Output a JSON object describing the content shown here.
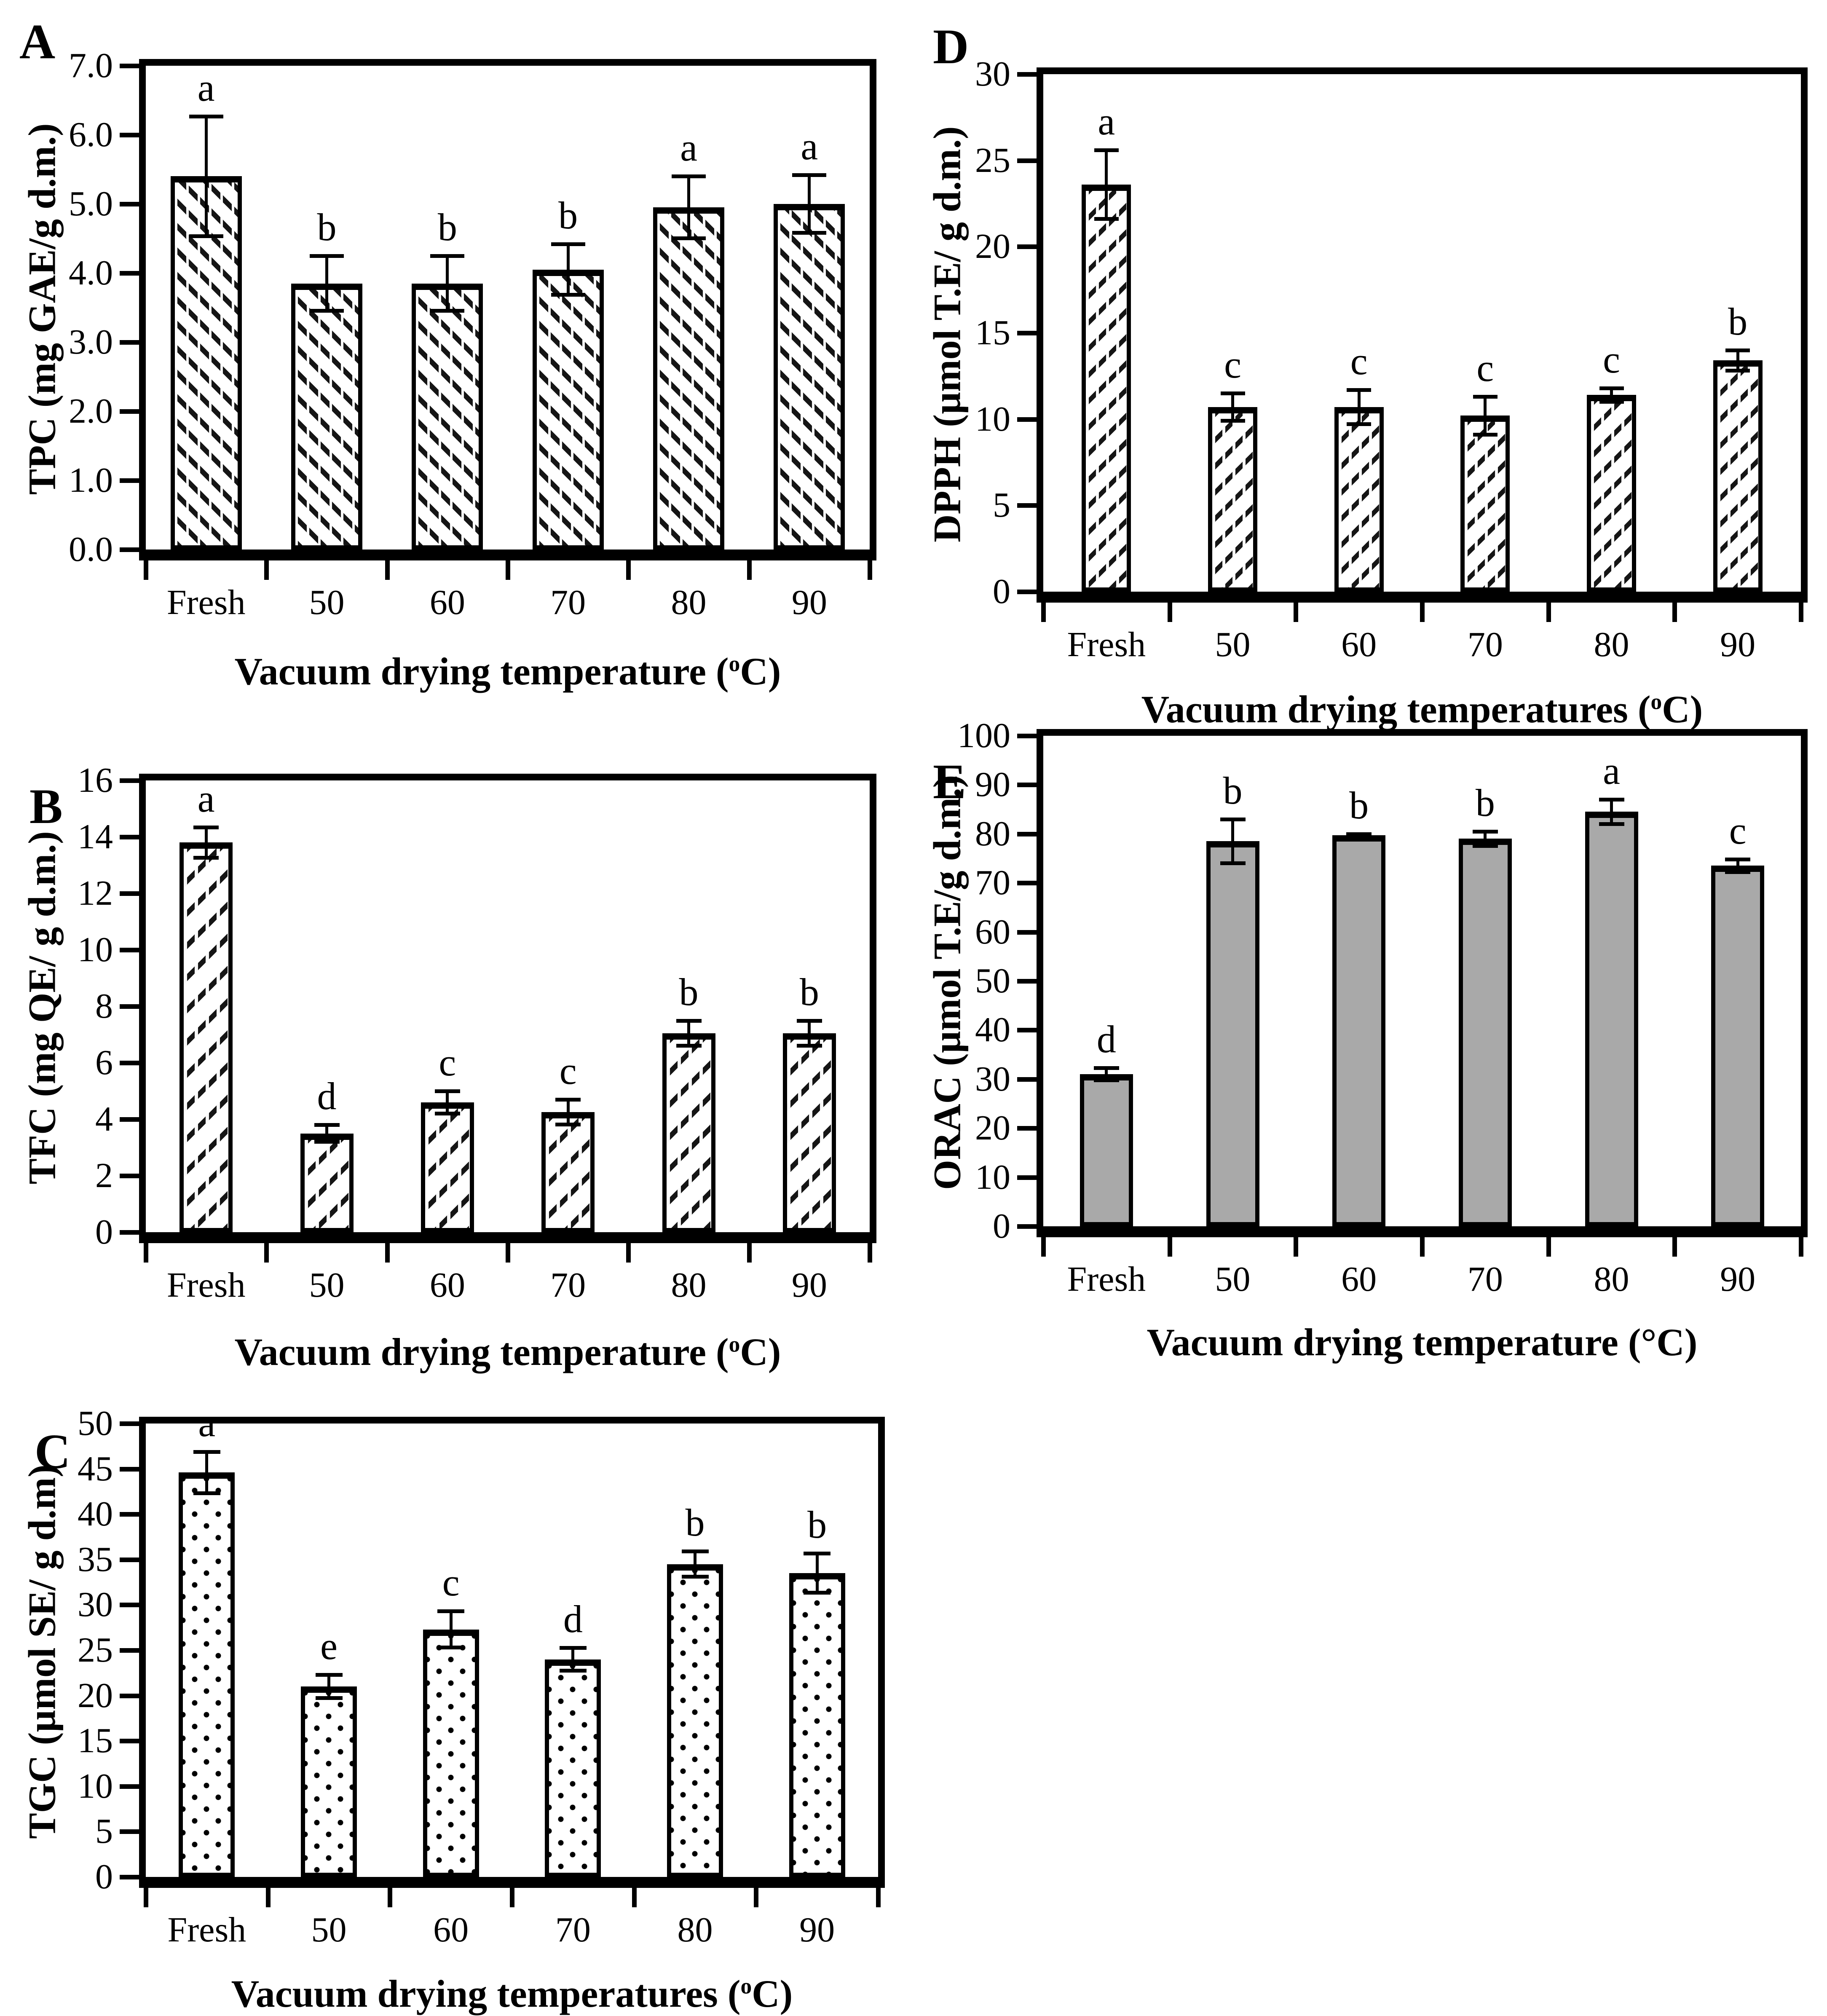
{
  "chart_data": [
    {
      "panel": "A",
      "type": "bar",
      "xlabel": "Vacuum drying temperature (°C)",
      "ylabel": "TPC (mg GAE/g d.m.)",
      "degree_superscript": true,
      "categories": [
        "Fresh",
        "50",
        "60",
        "70",
        "80",
        "90"
      ],
      "values": [
        5.4,
        3.85,
        3.85,
        4.05,
        4.95,
        5.0
      ],
      "errors": [
        0.87,
        0.4,
        0.4,
        0.37,
        0.45,
        0.42
      ],
      "sig_letters": [
        "a",
        "b",
        "b",
        "b",
        "a",
        "a"
      ],
      "ylim": [
        0,
        7
      ],
      "ytick_step": 1,
      "ytick_decimals": 1,
      "bar_style": "hatch-backslash",
      "grid": false,
      "legend": "none"
    },
    {
      "panel": "B",
      "type": "bar",
      "xlabel": "Vacuum drying temperature (°C)",
      "ylabel": "TFC (mg QE/ g d.m.)",
      "degree_superscript": true,
      "categories": [
        "Fresh",
        "50",
        "60",
        "70",
        "80",
        "90"
      ],
      "values": [
        13.8,
        3.5,
        4.6,
        4.25,
        7.05,
        7.05
      ],
      "errors": [
        0.55,
        0.3,
        0.4,
        0.45,
        0.45,
        0.45
      ],
      "sig_letters": [
        "a",
        "d",
        "c",
        "c",
        "b",
        "b"
      ],
      "ylim": [
        0,
        16
      ],
      "ytick_step": 2,
      "ytick_decimals": 0,
      "bar_style": "hatch-slash-b",
      "grid": false,
      "legend": "none"
    },
    {
      "panel": "C",
      "type": "bar",
      "xlabel": "Vacuum drying temperatures (°C)",
      "ylabel": "TGC (µmol SE/ g d.m)",
      "degree_superscript": true,
      "categories": [
        "Fresh",
        "50",
        "60",
        "70",
        "80",
        "90"
      ],
      "values": [
        44.6,
        21.0,
        27.3,
        24.0,
        34.5,
        33.5
      ],
      "errors": [
        2.3,
        1.3,
        2.0,
        1.3,
        1.4,
        2.2
      ],
      "sig_letters": [
        "a",
        "e",
        "c",
        "d",
        "b",
        "b"
      ],
      "ylim": [
        0,
        50
      ],
      "ytick_step": 5,
      "ytick_decimals": 0,
      "bar_style": "dots",
      "grid": false,
      "legend": "none"
    },
    {
      "panel": "D",
      "type": "bar",
      "xlabel": "Vacuum drying temperatures (°C)",
      "ylabel": "DPPH (µmol T.E/ g d.m.)",
      "degree_superscript": true,
      "categories": [
        "Fresh",
        "50",
        "60",
        "70",
        "80",
        "90"
      ],
      "values": [
        23.6,
        10.7,
        10.7,
        10.2,
        11.4,
        13.4
      ],
      "errors": [
        2.0,
        0.8,
        1.0,
        1.1,
        0.4,
        0.6
      ],
      "sig_letters": [
        "a",
        "c",
        "c",
        "c",
        "c",
        "b"
      ],
      "ylim": [
        0,
        30
      ],
      "ytick_step": 5,
      "ytick_decimals": 0,
      "bar_style": "hatch-slash-d",
      "grid": false,
      "legend": "none"
    },
    {
      "panel": "E",
      "type": "bar",
      "xlabel": "Vacuum drying temperature (°C)",
      "ylabel": "ORAC (µmol T.E/g d.m.)",
      "degree_superscript": false,
      "categories": [
        "Fresh",
        "50",
        "60",
        "70",
        "80",
        "90"
      ],
      "values": [
        31.0,
        78.5,
        79.7,
        79.0,
        84.5,
        73.5
      ],
      "errors": [
        1.3,
        4.5,
        0.3,
        1.5,
        2.5,
        1.3
      ],
      "sig_letters": [
        "d",
        "b",
        "b",
        "b",
        "a",
        "c"
      ],
      "ylim": [
        0,
        100
      ],
      "ytick_step": 10,
      "ytick_decimals": 0,
      "bar_style": "solid",
      "grid": false,
      "legend": "none"
    }
  ],
  "styles": {
    "ink": "#000000",
    "background": "#ffffff",
    "solid_bar_fill": "#a9a9a9"
  }
}
